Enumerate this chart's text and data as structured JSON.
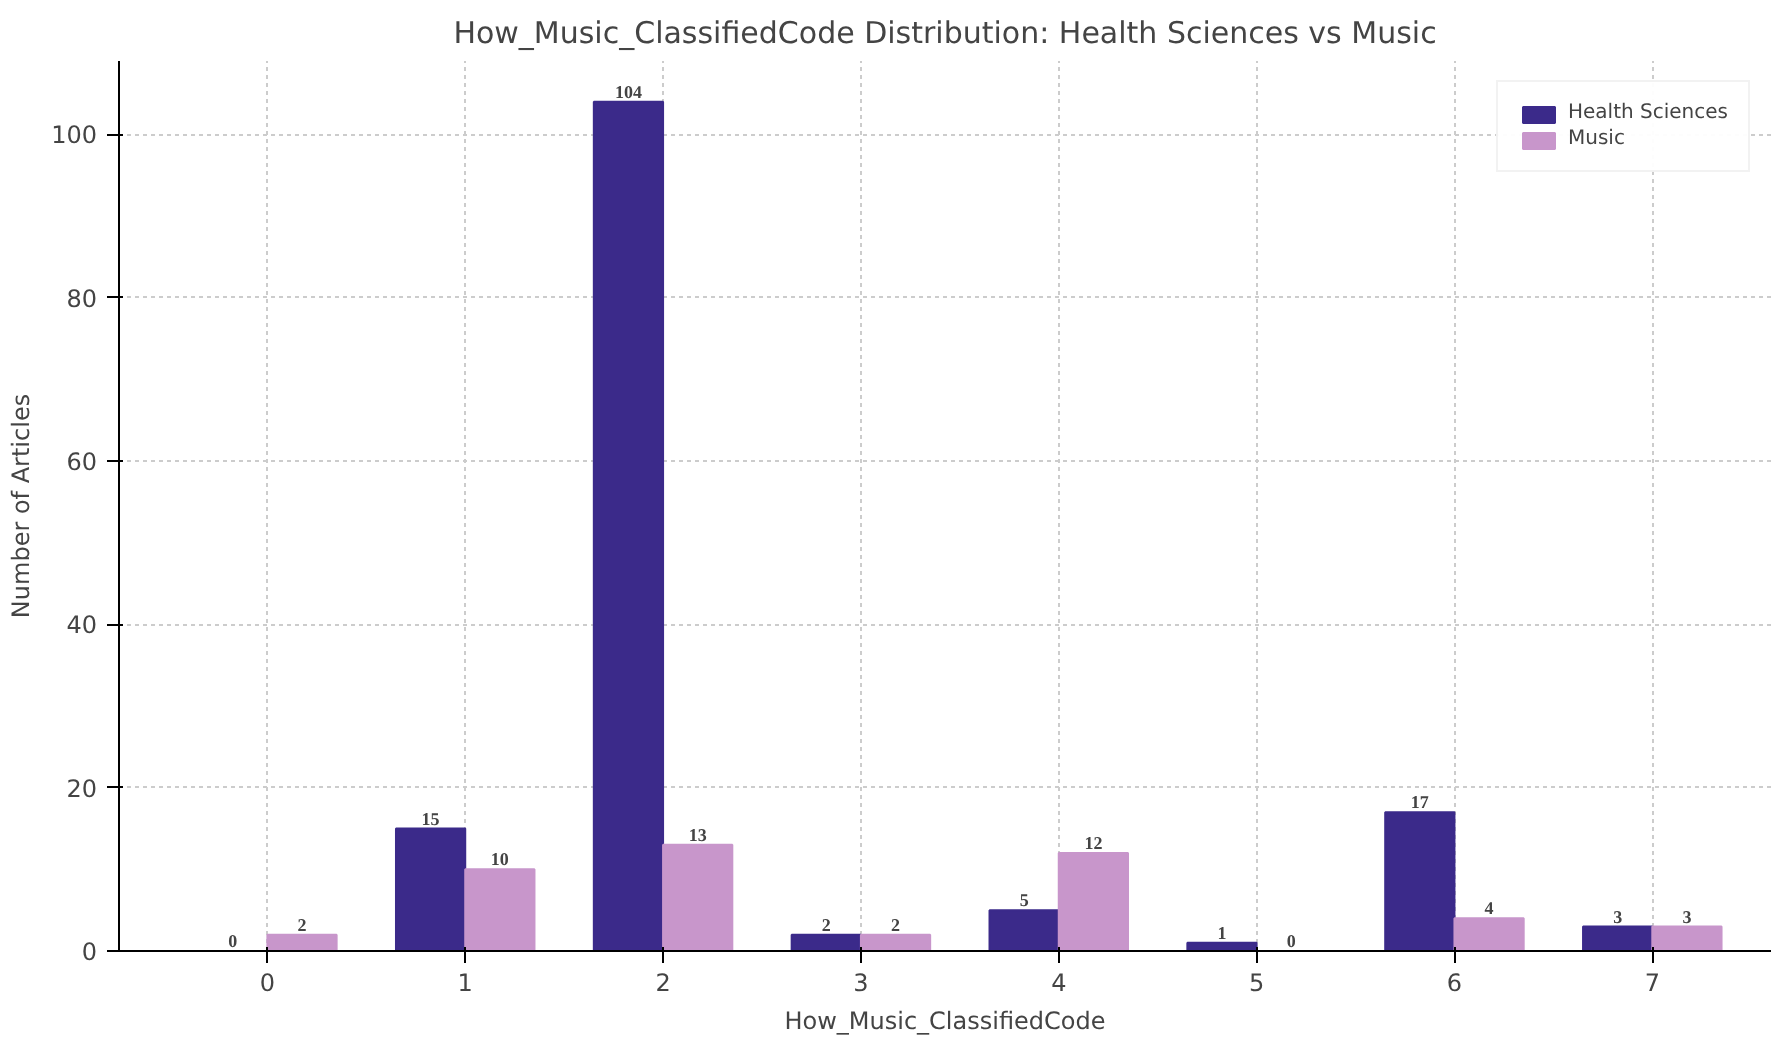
{
  "chart_data": {
    "type": "bar",
    "title": "How_Music_ClassifiedCode Distribution: Health Sciences vs Music",
    "xlabel": "How_Music_ClassifiedCode",
    "ylabel": "Number of Articles",
    "categories": [
      "0",
      "1",
      "2",
      "3",
      "4",
      "5",
      "6",
      "7"
    ],
    "series": [
      {
        "name": "Health Sciences",
        "color": "#3b2a8a",
        "values": [
          0,
          15,
          104,
          2,
          5,
          1,
          17,
          3
        ]
      },
      {
        "name": "Music",
        "color": "#c896cb",
        "values": [
          2,
          10,
          13,
          2,
          12,
          0,
          4,
          3
        ]
      }
    ],
    "ylim": [
      0,
      109
    ],
    "yticks": [
      0,
      20,
      40,
      60,
      80,
      100
    ],
    "grid": true,
    "legend": "top right",
    "data_labels": true
  }
}
